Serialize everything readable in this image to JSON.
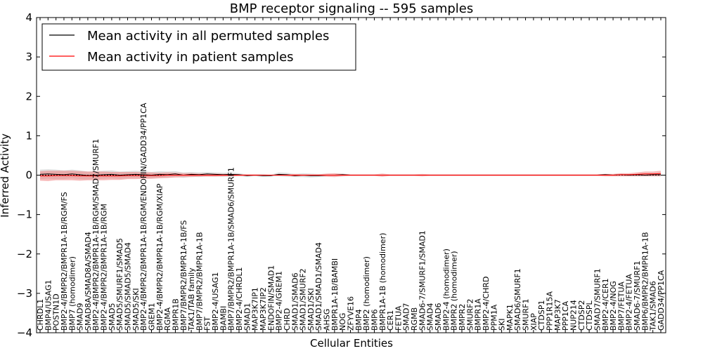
{
  "chart_data": {
    "type": "line",
    "title": "BMP receptor signaling -- 595 samples",
    "xlabel": "Cellular Entities",
    "ylabel": "Inferred Activity",
    "ylim": [
      -4,
      4
    ],
    "yticks": [
      -4,
      -3,
      -2,
      -1,
      0,
      1,
      2,
      3,
      4
    ],
    "ytick_labels": [
      "−4",
      "−3",
      "−2",
      "−1",
      "0",
      "1",
      "2",
      "3",
      "4"
    ],
    "grid": false,
    "legend_position": "top-left",
    "reference_line": 0,
    "categories": [
      "CHRDL1",
      "BMP4/USAG1",
      "POSTN1D",
      "BMP2-4/BMPR2/BMPR1A-1B/RGM/FS",
      "BMP7 (homodimer)",
      "SMAD9",
      "SMAD8A/SMAD8A/SMAD4",
      "BMP2-4/BMPR2/BMPR1A-1B/RGM/SMAD7/SMURF1",
      "BMP2-4/BMPR2/BMPR1A-1B/RGM",
      "SMAD5",
      "SMAD5/SMURF1/SMAD5",
      "SMAD5/SMAD5/SMAD4",
      "SMAD5/SKI",
      "BMP2-4/BMPR2/BMPR1A-1B/RGM/ENDOFIN/GADD34/PP1CA",
      "GREM1",
      "BMP2-4/BMPR2/BMPR1A-1B/RGM/XIAP",
      "RGMA",
      "BMPR1B",
      "BMP7/BMPR2/BMPR1A-1B/FS",
      "TAK1/TAB family",
      "BMP7/BMPR2/BMPR1A-1B",
      "FST",
      "BMP2-4/USAG1",
      "BAMBI",
      "BMP7/BMPR2/BMPR1A-1B/SMAD6/SMURF1",
      "BMP2-4/CHRDL1",
      "SMAD1",
      "MAP3K7IP1",
      "MAP3K7IP2",
      "ENDOFIN/SMAD1",
      "BMP2-4/GREM1",
      "CHRD",
      "SMAD1/SMAD6",
      "SMAD1/SMURF2",
      "SMAD1/SKI",
      "SMAD1/SMAD1/SMAD4",
      "AHSG",
      "BMPR1A-1B/BAMBI",
      "NOG",
      "ZFYVE16",
      "BMP4",
      "BMP2 (homodimer)",
      "BMP6",
      "BMPR1A-1B (homodimer)",
      "CER1",
      "FETUA",
      "SMAD7",
      "RGMB",
      "SMAD6-7/SMURF1/SMAD1",
      "SMAD4",
      "SMAD6",
      "BMP2-4 (homodimer)",
      "BMPR2 (homodimer)",
      "BMPR2",
      "SMURF2",
      "BMPR1A",
      "BMP2-4/CHRD",
      "PPM1A",
      "SKI",
      "MAPK1",
      "SMAD6/SMURF1",
      "SMURF1",
      "XIAP",
      "CTDSP1",
      "PPP1R15A",
      "MAP3K7",
      "PPP1CA",
      "NUP214",
      "CTDSP2",
      "CTDSPL",
      "SMAD7/SMURF1",
      "BMP2-4/CER1",
      "BMP2-4/NOG",
      "BMP7/FETUA",
      "BMP2-4/FETUA",
      "SMAD6-7/SMURF1",
      "BMP6/BMPR2/BMPR1A-1B",
      "TAK1/SMAD6",
      "GADD34/PP1CA"
    ],
    "series": [
      {
        "name": "Mean activity in all permuted samples",
        "color": "#000000",
        "values": [
          0.02,
          0.03,
          0.02,
          0.01,
          0.03,
          0.01,
          -0.01,
          0.0,
          0.01,
          0.02,
          0.0,
          0.01,
          0.02,
          0.01,
          0.0,
          0.02,
          0.01,
          0.03,
          0.0,
          0.02,
          0.01,
          0.03,
          0.02,
          0.01,
          0.02,
          0.01,
          -0.01,
          0.0,
          -0.01,
          -0.01,
          0.02,
          0.01,
          -0.01,
          0.0,
          -0.01,
          -0.01,
          0.0,
          0.0,
          0.01,
          0.0,
          0.0,
          0.0,
          0.0,
          0.0,
          0.0,
          0.0,
          0.0,
          0.0,
          0.0,
          0.0,
          0.0,
          0.0,
          0.0,
          0.0,
          0.0,
          0.0,
          0.0,
          0.0,
          0.0,
          0.0,
          0.0,
          0.0,
          0.0,
          0.0,
          0.0,
          0.0,
          0.0,
          0.0,
          0.0,
          0.0,
          0.0,
          0.01,
          0.0,
          0.01,
          0.0,
          0.01,
          0.0,
          0.01,
          0.01
        ],
        "spread": [
          0.12,
          0.12,
          0.12,
          0.11,
          0.11,
          0.11,
          0.1,
          0.1,
          0.1,
          0.1,
          0.09,
          0.09,
          0.09,
          0.09,
          0.08,
          0.08,
          0.08,
          0.07,
          0.07,
          0.06,
          0.06,
          0.05,
          0.05,
          0.05,
          0.05,
          0.04,
          0.03,
          0.02,
          0.04,
          0.02,
          0.05,
          0.05,
          0.04,
          0.05,
          0.05,
          0.04,
          0.03,
          0.03,
          0.03,
          0.02,
          0.02,
          0.02,
          0.02,
          0.02,
          0.02,
          0.02,
          0.02,
          0.02,
          0.02,
          0.02,
          0.02,
          0.02,
          0.02,
          0.02,
          0.02,
          0.02,
          0.02,
          0.02,
          0.02,
          0.02,
          0.02,
          0.02,
          0.02,
          0.02,
          0.02,
          0.02,
          0.02,
          0.02,
          0.02,
          0.02,
          0.02,
          0.02,
          0.02,
          0.02,
          0.02,
          0.02,
          0.02,
          0.02,
          0.02
        ],
        "band_color": "#cccccc"
      },
      {
        "name": "Mean activity in patient samples",
        "color": "#ff0000",
        "values": [
          -0.02,
          -0.02,
          -0.01,
          -0.01,
          -0.01,
          -0.02,
          -0.02,
          -0.02,
          -0.02,
          -0.02,
          -0.02,
          -0.01,
          -0.01,
          -0.01,
          -0.01,
          -0.01,
          0.0,
          0.0,
          0.0,
          0.0,
          0.0,
          0.0,
          0.0,
          0.0,
          0.0,
          0.0,
          0.0,
          0.0,
          0.0,
          0.0,
          0.0,
          0.0,
          0.0,
          0.0,
          0.0,
          0.0,
          0.0,
          0.0,
          0.0,
          0.0,
          0.0,
          0.0,
          0.0,
          0.0,
          0.0,
          0.0,
          0.0,
          0.0,
          0.0,
          0.0,
          0.0,
          0.0,
          0.0,
          0.0,
          0.0,
          0.0,
          0.0,
          0.0,
          0.0,
          0.0,
          0.0,
          0.0,
          0.0,
          0.0,
          0.0,
          0.0,
          0.0,
          0.0,
          0.0,
          0.0,
          0.0,
          0.0,
          0.0,
          0.01,
          0.01,
          0.02,
          0.03,
          0.03,
          0.04
        ],
        "spread": [
          0.12,
          0.13,
          0.12,
          0.12,
          0.12,
          0.12,
          0.11,
          0.11,
          0.11,
          0.1,
          0.1,
          0.09,
          0.09,
          0.08,
          0.08,
          0.07,
          0.07,
          0.06,
          0.05,
          0.05,
          0.04,
          0.04,
          0.04,
          0.03,
          0.03,
          0.02,
          0.02,
          0.02,
          0.01,
          0.01,
          0.01,
          0.02,
          0.03,
          0.02,
          0.02,
          0.02,
          0.04,
          0.05,
          0.03,
          0.02,
          0.02,
          0.02,
          0.02,
          0.04,
          0.02,
          0.02,
          0.02,
          0.02,
          0.03,
          0.02,
          0.02,
          0.02,
          0.02,
          0.02,
          0.02,
          0.02,
          0.02,
          0.02,
          0.02,
          0.02,
          0.02,
          0.02,
          0.02,
          0.02,
          0.02,
          0.02,
          0.02,
          0.02,
          0.02,
          0.02,
          0.02,
          0.03,
          0.03,
          0.04,
          0.04,
          0.05,
          0.06,
          0.06,
          0.07
        ],
        "band_color": "#f08080"
      }
    ]
  }
}
